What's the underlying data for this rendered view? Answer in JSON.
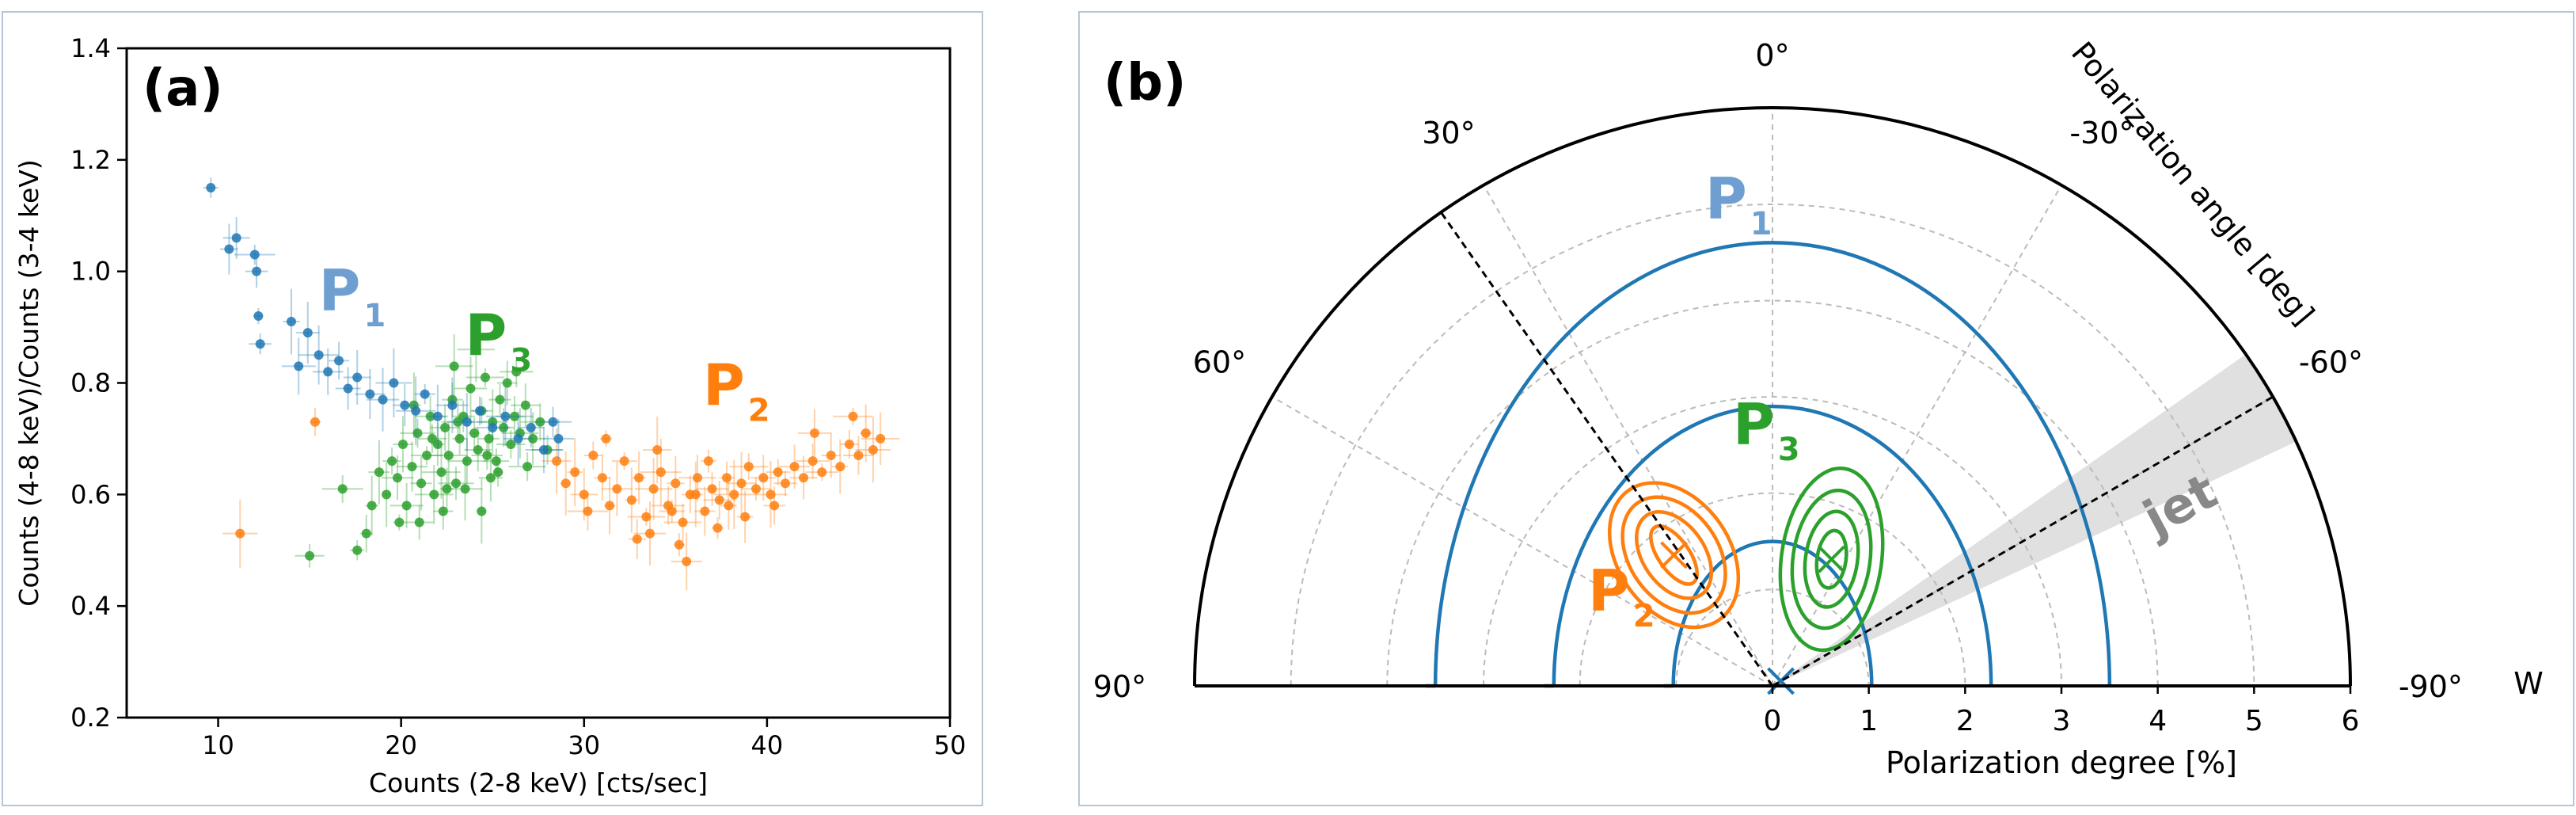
{
  "colors": {
    "blue": "#1f77b4",
    "blue_label": "#6f9fd0",
    "orange": "#ff7f0e",
    "green": "#2ca02c",
    "jet_band": "#cccccc",
    "jet_label": "#888888"
  },
  "chart_data": [
    {
      "type": "scatter",
      "panel_label": "(a)",
      "xlabel": "Counts (2-8 keV) [cts/sec]",
      "ylabel": "Counts (4-8 keV)/Counts (3-4 keV)",
      "xlim": [
        5,
        50
      ],
      "ylim": [
        0.2,
        1.4
      ],
      "xticks": [
        "10",
        "20",
        "30",
        "40",
        "50"
      ],
      "yticks": [
        "0.2",
        "0.4",
        "0.6",
        "0.8",
        "1.0",
        "1.2",
        "1.4"
      ],
      "grid": false,
      "annotations": [
        {
          "base": "P",
          "sub": "1",
          "color": "#6f9fd0",
          "x": 15.5,
          "y": 0.93
        },
        {
          "base": "P",
          "sub": "3",
          "color": "#2ca02c",
          "x": 23.5,
          "y": 0.85
        },
        {
          "base": "P",
          "sub": "2",
          "color": "#ff7f0e",
          "x": 36.5,
          "y": 0.76
        }
      ],
      "series": [
        {
          "name": "P1",
          "color": "#1f77b4",
          "points": [
            [
              9.6,
              1.15
            ],
            [
              10.6,
              1.04
            ],
            [
              11.0,
              1.06
            ],
            [
              12.0,
              1.03
            ],
            [
              12.1,
              1.0
            ],
            [
              12.2,
              0.92
            ],
            [
              12.3,
              0.87
            ],
            [
              14.0,
              0.91
            ],
            [
              14.4,
              0.83
            ],
            [
              14.9,
              0.89
            ],
            [
              15.5,
              0.85
            ],
            [
              16.0,
              0.82
            ],
            [
              16.6,
              0.84
            ],
            [
              17.1,
              0.79
            ],
            [
              17.6,
              0.81
            ],
            [
              18.3,
              0.78
            ],
            [
              19.0,
              0.77
            ],
            [
              19.6,
              0.8
            ],
            [
              20.2,
              0.76
            ],
            [
              20.8,
              0.75
            ],
            [
              21.3,
              0.78
            ],
            [
              22.0,
              0.74
            ],
            [
              22.8,
              0.76
            ],
            [
              23.6,
              0.73
            ],
            [
              24.3,
              0.75
            ],
            [
              25.0,
              0.72
            ],
            [
              25.7,
              0.74
            ],
            [
              26.4,
              0.7
            ],
            [
              27.1,
              0.72
            ],
            [
              27.8,
              0.68
            ],
            [
              28.3,
              0.73
            ],
            [
              28.6,
              0.7
            ]
          ]
        },
        {
          "name": "P3",
          "color": "#2ca02c",
          "points": [
            [
              19.2,
              0.6
            ],
            [
              19.5,
              0.66
            ],
            [
              19.8,
              0.63
            ],
            [
              20.1,
              0.69
            ],
            [
              20.3,
              0.58
            ],
            [
              20.6,
              0.65
            ],
            [
              20.9,
              0.71
            ],
            [
              21.1,
              0.62
            ],
            [
              21.4,
              0.67
            ],
            [
              21.6,
              0.74
            ],
            [
              21.8,
              0.6
            ],
            [
              22.0,
              0.69
            ],
            [
              22.2,
              0.64
            ],
            [
              22.4,
              0.72
            ],
            [
              22.6,
              0.67
            ],
            [
              22.8,
              0.77
            ],
            [
              23.0,
              0.62
            ],
            [
              23.2,
              0.7
            ],
            [
              23.4,
              0.74
            ],
            [
              23.6,
              0.66
            ],
            [
              23.8,
              0.79
            ],
            [
              24.0,
              0.71
            ],
            [
              24.2,
              0.68
            ],
            [
              24.4,
              0.75
            ],
            [
              24.6,
              0.81
            ],
            [
              24.8,
              0.7
            ],
            [
              25.0,
              0.73
            ],
            [
              25.2,
              0.66
            ],
            [
              25.4,
              0.77
            ],
            [
              25.6,
              0.72
            ],
            [
              25.8,
              0.8
            ],
            [
              26.0,
              0.69
            ],
            [
              26.2,
              0.74
            ],
            [
              26.5,
              0.71
            ],
            [
              26.8,
              0.76
            ],
            [
              27.2,
              0.7
            ],
            [
              27.6,
              0.73
            ],
            [
              28.0,
              0.68
            ],
            [
              21.0,
              0.55
            ],
            [
              22.3,
              0.57
            ],
            [
              23.5,
              0.61
            ],
            [
              18.4,
              0.58
            ],
            [
              18.1,
              0.53
            ],
            [
              17.6,
              0.5
            ],
            [
              16.8,
              0.61
            ],
            [
              15.0,
              0.49
            ],
            [
              24.9,
              0.63
            ],
            [
              20.7,
              0.76
            ],
            [
              22.9,
              0.83
            ],
            [
              24.1,
              0.86
            ],
            [
              26.3,
              0.82
            ],
            [
              25.3,
              0.64
            ],
            [
              19.9,
              0.55
            ],
            [
              21.7,
              0.7
            ],
            [
              23.1,
              0.73
            ],
            [
              24.7,
              0.67
            ],
            [
              26.9,
              0.65
            ],
            [
              18.8,
              0.64
            ],
            [
              22.5,
              0.61
            ],
            [
              24.4,
              0.57
            ]
          ]
        },
        {
          "name": "P2",
          "color": "#ff7f0e",
          "points": [
            [
              28.5,
              0.66
            ],
            [
              29.0,
              0.62
            ],
            [
              29.5,
              0.64
            ],
            [
              30.0,
              0.6
            ],
            [
              30.5,
              0.67
            ],
            [
              31.0,
              0.63
            ],
            [
              31.4,
              0.58
            ],
            [
              31.8,
              0.61
            ],
            [
              32.2,
              0.66
            ],
            [
              32.6,
              0.59
            ],
            [
              33.0,
              0.63
            ],
            [
              33.4,
              0.56
            ],
            [
              33.8,
              0.61
            ],
            [
              34.2,
              0.64
            ],
            [
              34.6,
              0.58
            ],
            [
              35.0,
              0.62
            ],
            [
              35.4,
              0.55
            ],
            [
              35.8,
              0.6
            ],
            [
              36.2,
              0.63
            ],
            [
              36.6,
              0.57
            ],
            [
              37.0,
              0.61
            ],
            [
              37.4,
              0.59
            ],
            [
              37.8,
              0.63
            ],
            [
              38.2,
              0.6
            ],
            [
              38.6,
              0.62
            ],
            [
              39.0,
              0.65
            ],
            [
              39.4,
              0.61
            ],
            [
              39.8,
              0.63
            ],
            [
              40.2,
              0.6
            ],
            [
              40.6,
              0.64
            ],
            [
              41.0,
              0.62
            ],
            [
              41.5,
              0.65
            ],
            [
              42.0,
              0.63
            ],
            [
              42.5,
              0.66
            ],
            [
              43.0,
              0.64
            ],
            [
              43.5,
              0.67
            ],
            [
              44.0,
              0.65
            ],
            [
              44.5,
              0.69
            ],
            [
              45.0,
              0.67
            ],
            [
              45.4,
              0.71
            ],
            [
              45.8,
              0.68
            ],
            [
              46.2,
              0.7
            ],
            [
              44.7,
              0.74
            ],
            [
              42.6,
              0.71
            ],
            [
              33.6,
              0.53
            ],
            [
              35.2,
              0.51
            ],
            [
              37.3,
              0.54
            ],
            [
              31.2,
              0.7
            ],
            [
              34.0,
              0.68
            ],
            [
              36.8,
              0.66
            ],
            [
              38.8,
              0.56
            ],
            [
              32.9,
              0.52
            ],
            [
              30.2,
              0.57
            ],
            [
              35.6,
              0.48
            ],
            [
              40.4,
              0.58
            ],
            [
              15.3,
              0.73
            ],
            [
              11.2,
              0.53
            ],
            [
              36.1,
              0.6
            ],
            [
              34.8,
              0.57
            ],
            [
              37.9,
              0.58
            ]
          ]
        }
      ]
    },
    {
      "type": "polar",
      "panel_label": "(b)",
      "xlabel": "Polarization degree [%]",
      "angle_label": "Polarization angle [deg]",
      "side_label": "W",
      "r_ticks": [
        "0",
        "1",
        "2",
        "3",
        "4",
        "5",
        "6"
      ],
      "r_max": 6,
      "angle_ticks": [
        "90°",
        "60°",
        "30°",
        "0°",
        "-30°",
        "-60°",
        "-90°"
      ],
      "angle_tick_values": [
        90,
        60,
        30,
        0,
        -30,
        -60,
        -90
      ],
      "grid": true,
      "jet_label": "jet",
      "jet_angle_deg": -60,
      "jet_band_deg": [
        -55,
        -65
      ],
      "dashed_angle_deg": 35,
      "annotations": [
        {
          "base": "P",
          "sub": "1",
          "color": "#6f9fd0"
        },
        {
          "base": "P",
          "sub": "3",
          "color": "#2ca02c"
        },
        {
          "base": "P",
          "sub": "2",
          "color": "#ff7f0e"
        }
      ],
      "series": [
        {
          "name": "P1",
          "color": "#1f77b4",
          "center": {
            "angle_deg": -60,
            "degree": 0.1
          },
          "contours": [
            [
              1.03,
              1.5
            ],
            [
              2.27,
              2.9
            ],
            [
              3.5,
              4.6
            ]
          ]
        },
        {
          "name": "P3",
          "color": "#2ca02c",
          "center": {
            "angle_deg": -25,
            "degree": 1.45
          },
          "contours": [
            [
              0.15,
              0.3
            ],
            [
              0.27,
              0.5
            ],
            [
              0.4,
              0.72
            ],
            [
              0.52,
              0.95
            ]
          ]
        },
        {
          "name": "P2",
          "color": "#ff7f0e",
          "center": {
            "angle_deg": 37,
            "degree": 1.7
          },
          "contours": [
            [
              0.16,
              0.35
            ],
            [
              0.32,
              0.5
            ],
            [
              0.46,
              0.66
            ],
            [
              0.58,
              0.82
            ]
          ]
        }
      ]
    }
  ]
}
